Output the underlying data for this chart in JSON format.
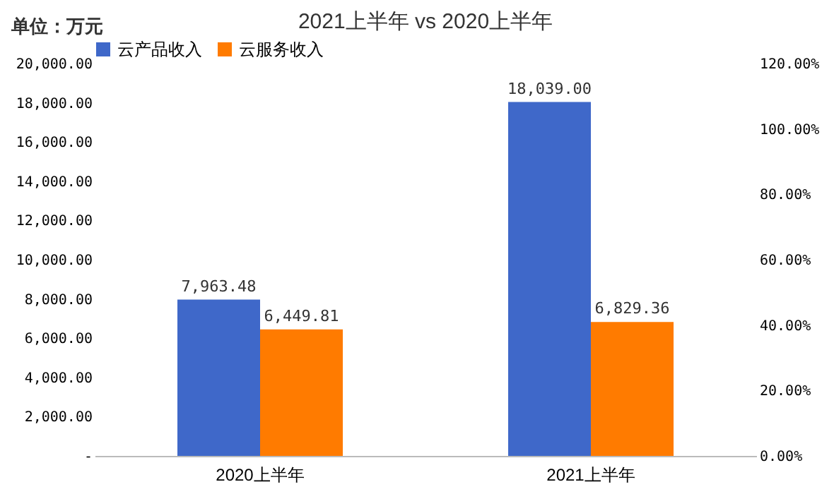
{
  "chart_data": {
    "type": "bar",
    "title": "2021上半年 vs 2020上半年",
    "annotations": [
      "单位：万元"
    ],
    "categories": [
      "2020上半年",
      "2021上半年"
    ],
    "series": [
      {
        "name": "云产品收入",
        "color": "#3f68c9",
        "values": [
          7963.48,
          18039.0
        ],
        "value_labels": [
          "7,963.48",
          "18,039.00"
        ]
      },
      {
        "name": "云服务收入",
        "color": "#ff7b00",
        "values": [
          6449.81,
          6829.36
        ],
        "value_labels": [
          "6,449.81",
          "6,829.36"
        ]
      }
    ],
    "ylim": [
      0,
      20000
    ],
    "yticks": [
      {
        "value": 0,
        "label": "-"
      },
      {
        "value": 2000,
        "label": "2,000.00"
      },
      {
        "value": 4000,
        "label": "4,000.00"
      },
      {
        "value": 6000,
        "label": "6,000.00"
      },
      {
        "value": 8000,
        "label": "8,000.00"
      },
      {
        "value": 10000,
        "label": "10,000.00"
      },
      {
        "value": 12000,
        "label": "12,000.00"
      },
      {
        "value": 14000,
        "label": "14,000.00"
      },
      {
        "value": 16000,
        "label": "16,000.00"
      },
      {
        "value": 18000,
        "label": "18,000.00"
      },
      {
        "value": 20000,
        "label": "20,000.00"
      }
    ],
    "y2lim": [
      0,
      120
    ],
    "y2ticks": [
      {
        "value": 0,
        "label": "0.00%"
      },
      {
        "value": 20,
        "label": "20.00%"
      },
      {
        "value": 40,
        "label": "40.00%"
      },
      {
        "value": 60,
        "label": "60.00%"
      },
      {
        "value": 80,
        "label": "80.00%"
      },
      {
        "value": 100,
        "label": "100.00%"
      },
      {
        "value": 120,
        "label": "120.00%"
      }
    ],
    "legend": "top"
  }
}
